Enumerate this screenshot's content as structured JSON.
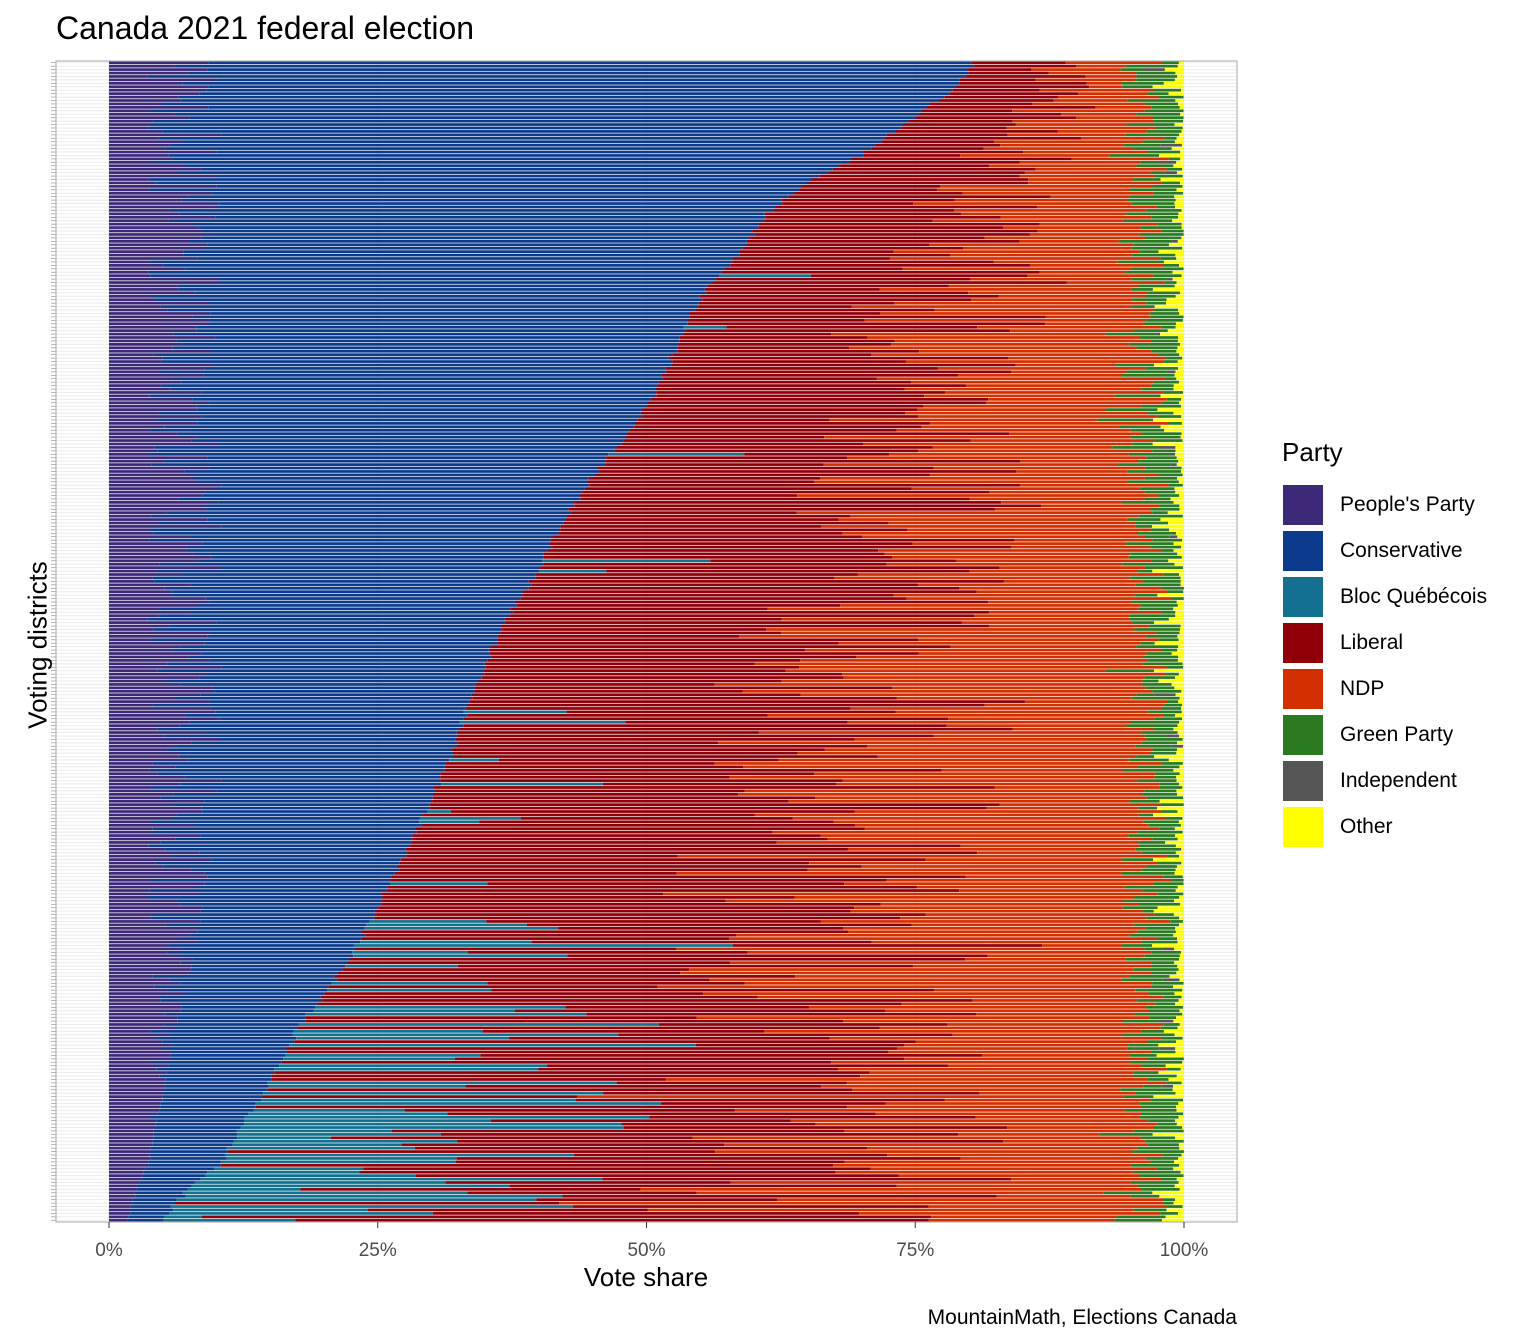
{
  "chart_data": {
    "type": "bar",
    "orientation": "horizontal-stacked",
    "title": "Canada 2021 federal election",
    "xlabel": "Vote share",
    "ylabel": "Voting districts",
    "caption": "MountainMath, Elections Canada",
    "xlim": [
      0,
      1
    ],
    "x_ticks": [
      "0%",
      "25%",
      "50%",
      "75%",
      "100%"
    ],
    "legend_title": "Party",
    "legend_position": "right",
    "grid": true,
    "n_districts": 338,
    "parties": [
      {
        "name": "People's Party",
        "color": "#3c2a78"
      },
      {
        "name": "Conservative",
        "color": "#0c3b8c"
      },
      {
        "name": "Bloc Québécois",
        "color": "#13718f"
      },
      {
        "name": "Liberal",
        "color": "#8f0009"
      },
      {
        "name": "NDP",
        "color": "#d42f00"
      },
      {
        "name": "Green Party",
        "color": "#2a7a22"
      },
      {
        "name": "Independent",
        "color": "#555555"
      },
      {
        "name": "Other",
        "color": "#ffff00"
      }
    ],
    "sorted_by": "cumulative People's Party + Conservative share",
    "cumulative_conservative_profile": [
      [
        0.0,
        0.805
      ],
      [
        0.02,
        0.79
      ],
      [
        0.05,
        0.745
      ],
      [
        0.08,
        0.7
      ],
      [
        0.1,
        0.655
      ],
      [
        0.13,
        0.612
      ],
      [
        0.16,
        0.59
      ],
      [
        0.2,
        0.552
      ],
      [
        0.24,
        0.53
      ],
      [
        0.28,
        0.512
      ],
      [
        0.32,
        0.483
      ],
      [
        0.36,
        0.448
      ],
      [
        0.4,
        0.42
      ],
      [
        0.44,
        0.398
      ],
      [
        0.48,
        0.37
      ],
      [
        0.52,
        0.35
      ],
      [
        0.56,
        0.332
      ],
      [
        0.6,
        0.318
      ],
      [
        0.64,
        0.298
      ],
      [
        0.68,
        0.278
      ],
      [
        0.72,
        0.255
      ],
      [
        0.76,
        0.232
      ],
      [
        0.8,
        0.205
      ],
      [
        0.83,
        0.178
      ],
      [
        0.86,
        0.162
      ],
      [
        0.89,
        0.145
      ],
      [
        0.92,
        0.122
      ],
      [
        0.95,
        0.105
      ],
      [
        0.975,
        0.072
      ],
      [
        1.0,
        0.05
      ]
    ]
  }
}
